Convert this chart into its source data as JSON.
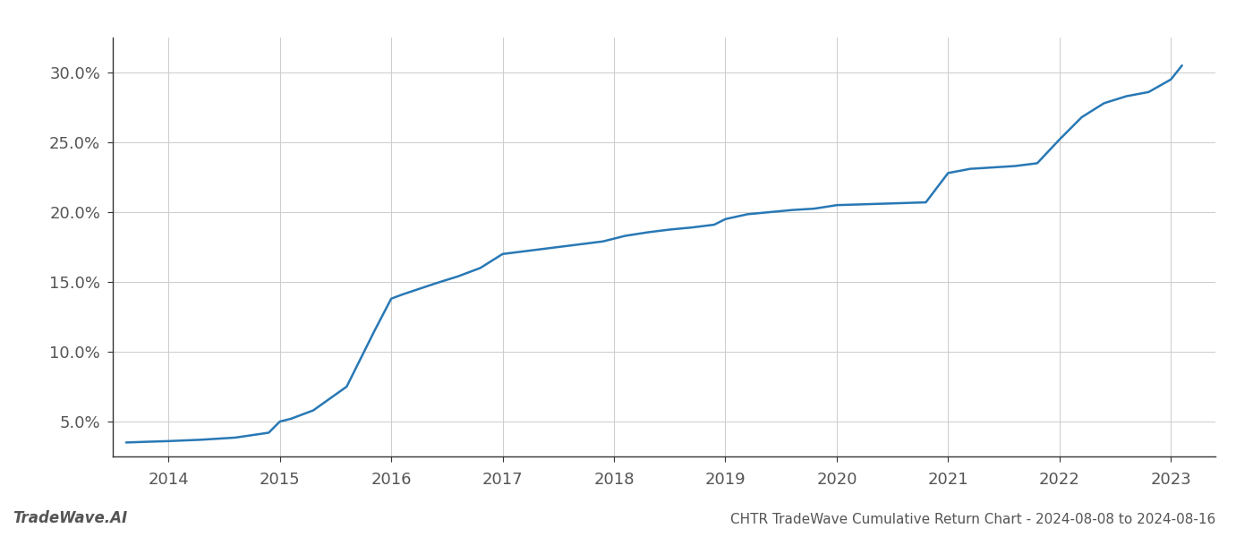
{
  "x_values": [
    2013.62,
    2013.8,
    2014.0,
    2014.3,
    2014.6,
    2014.9,
    2015.0,
    2015.1,
    2015.3,
    2015.6,
    2015.85,
    2016.0,
    2016.1,
    2016.25,
    2016.4,
    2016.6,
    2016.8,
    2017.0,
    2017.15,
    2017.3,
    2017.5,
    2017.7,
    2017.9,
    2018.1,
    2018.3,
    2018.5,
    2018.7,
    2018.9,
    2019.0,
    2019.2,
    2019.4,
    2019.6,
    2019.8,
    2020.0,
    2020.2,
    2020.4,
    2020.6,
    2020.8,
    2021.0,
    2021.2,
    2021.4,
    2021.6,
    2021.8,
    2022.0,
    2022.2,
    2022.4,
    2022.6,
    2022.8,
    2023.0,
    2023.1
  ],
  "y_values": [
    3.5,
    3.55,
    3.6,
    3.7,
    3.85,
    4.2,
    5.0,
    5.2,
    5.8,
    7.5,
    11.5,
    13.8,
    14.1,
    14.5,
    14.9,
    15.4,
    16.0,
    17.0,
    17.15,
    17.3,
    17.5,
    17.7,
    17.9,
    18.3,
    18.55,
    18.75,
    18.9,
    19.1,
    19.5,
    19.85,
    20.0,
    20.15,
    20.25,
    20.5,
    20.55,
    20.6,
    20.65,
    20.7,
    22.8,
    23.1,
    23.2,
    23.3,
    23.5,
    25.2,
    26.8,
    27.8,
    28.3,
    28.6,
    29.5,
    30.5
  ],
  "line_color": "#2878b5",
  "line_width": 1.8,
  "title": "CHTR TradeWave Cumulative Return Chart - 2024-08-08 to 2024-08-16",
  "watermark": "TradeWave.AI",
  "background_color": "#ffffff",
  "grid_color": "#cccccc",
  "ytick_labels": [
    "5.0%",
    "10.0%",
    "15.0%",
    "20.0%",
    "25.0%",
    "30.0%"
  ],
  "ytick_values": [
    5.0,
    10.0,
    15.0,
    20.0,
    25.0,
    30.0
  ],
  "xtick_labels": [
    "2014",
    "2015",
    "2016",
    "2017",
    "2018",
    "2019",
    "2020",
    "2021",
    "2022",
    "2023"
  ],
  "xtick_values": [
    2014,
    2015,
    2016,
    2017,
    2018,
    2019,
    2020,
    2021,
    2022,
    2023
  ],
  "xlim": [
    2013.5,
    2023.4
  ],
  "ylim": [
    2.5,
    32.5
  ],
  "title_fontsize": 11,
  "watermark_fontsize": 12,
  "tick_fontsize": 13,
  "axis_color": "#555555",
  "spine_color": "#333333",
  "grid_linewidth": 0.7
}
